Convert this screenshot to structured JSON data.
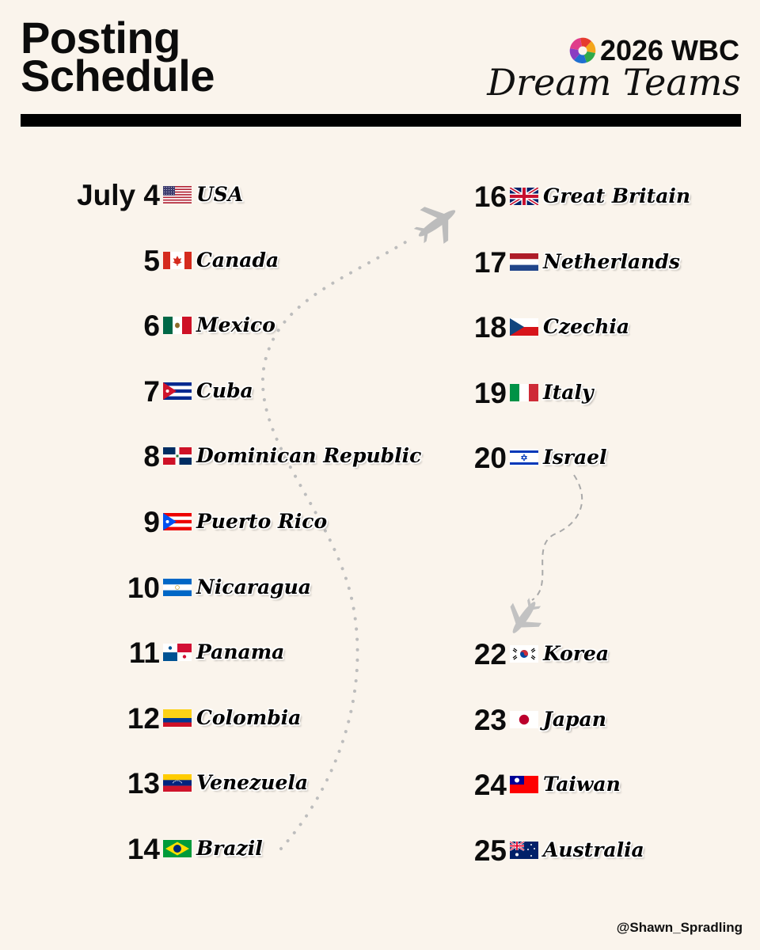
{
  "header": {
    "title_line1": "Posting",
    "title_line2": "Schedule",
    "brand_main": "2026 WBC",
    "brand_script": "Dream Teams"
  },
  "month": "July",
  "schedule": [
    {
      "day": "4",
      "team": "USA",
      "flag": "usa"
    },
    {
      "day": "5",
      "team": "Canada",
      "flag": "canada"
    },
    {
      "day": "6",
      "team": "Mexico",
      "flag": "mexico"
    },
    {
      "day": "7",
      "team": "Cuba",
      "flag": "cuba"
    },
    {
      "day": "8",
      "team": "Dominican Republic",
      "flag": "dominican-republic"
    },
    {
      "day": "9",
      "team": "Puerto Rico",
      "flag": "puerto-rico"
    },
    {
      "day": "10",
      "team": "Nicaragua",
      "flag": "nicaragua"
    },
    {
      "day": "11",
      "team": "Panama",
      "flag": "panama"
    },
    {
      "day": "12",
      "team": "Colombia",
      "flag": "colombia"
    },
    {
      "day": "13",
      "team": "Venezuela",
      "flag": "venezuela"
    },
    {
      "day": "14",
      "team": "Brazil",
      "flag": "brazil"
    },
    {
      "day": "16",
      "team": "Great Britain",
      "flag": "great-britain"
    },
    {
      "day": "17",
      "team": "Netherlands",
      "flag": "netherlands"
    },
    {
      "day": "18",
      "team": "Czechia",
      "flag": "czechia"
    },
    {
      "day": "19",
      "team": "Italy",
      "flag": "italy"
    },
    {
      "day": "20",
      "team": "Israel",
      "flag": "israel"
    },
    {
      "day": "22",
      "team": "Korea",
      "flag": "korea"
    },
    {
      "day": "23",
      "team": "Japan",
      "flag": "japan"
    },
    {
      "day": "24",
      "team": "Taiwan",
      "flag": "taiwan"
    },
    {
      "day": "25",
      "team": "Australia",
      "flag": "australia"
    }
  ],
  "footer": {
    "handle": "@Shawn_Spradling"
  },
  "icons": [
    "wbc-logo-icon",
    "airplane-icon",
    "airplane-icon"
  ]
}
